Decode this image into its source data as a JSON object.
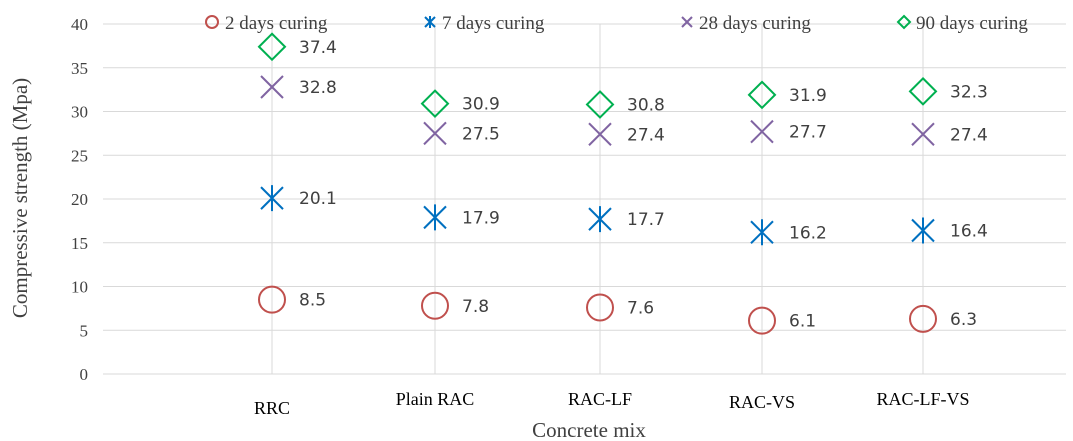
{
  "chart_data": {
    "type": "scatter",
    "categories": [
      "RRC",
      "Plain RAC",
      "RAC-LF",
      "RAC-VS",
      "RAC-LF-VS"
    ],
    "series": [
      {
        "name": "2 days curing",
        "marker": "circle",
        "color": "#c0504d",
        "values": [
          8.5,
          7.8,
          7.6,
          6.1,
          6.3
        ]
      },
      {
        "name": "7 days curing",
        "marker": "star",
        "color": "#0070c0",
        "values": [
          20.1,
          17.9,
          17.7,
          16.2,
          16.4
        ]
      },
      {
        "name": "28 days curing",
        "marker": "x",
        "color": "#8064a2",
        "values": [
          32.8,
          27.5,
          27.4,
          27.7,
          27.4
        ]
      },
      {
        "name": "90 days curing",
        "marker": "diamond",
        "color": "#00b050",
        "values": [
          37.4,
          30.9,
          30.8,
          31.9,
          32.3
        ]
      }
    ],
    "data_labels": [
      [
        "8.5",
        "7.8",
        "7.6",
        "6.1",
        "6.3"
      ],
      [
        "20.1",
        "17.9",
        "17.7",
        "16.2",
        "16.4"
      ],
      [
        "32.8",
        "27.5",
        "27.4",
        "27.7",
        "27.4"
      ],
      [
        "37.4",
        "30.9",
        "30.8",
        "31.9",
        "32.3"
      ]
    ],
    "xlabel": "Concrete mix",
    "ylabel": "Compressive strength (Mpa)",
    "ylim": [
      0,
      40
    ],
    "yticks": [
      "0",
      "5",
      "10",
      "15",
      "20",
      "25",
      "30",
      "35",
      "40"
    ],
    "grid": true,
    "legend_position": "top"
  }
}
